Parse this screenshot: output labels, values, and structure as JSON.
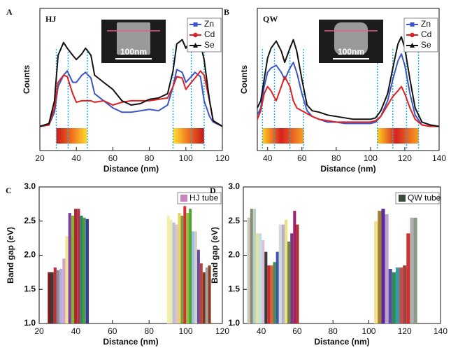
{
  "chart_data": [
    {
      "type": "line",
      "label": "A",
      "tag": "HJ",
      "inset_scale": "100nm",
      "xlabel": "Distance (nm)",
      "ylabel": "Counts",
      "xlim": [
        20,
        120
      ],
      "ylim": [
        0,
        100
      ],
      "xticks": [
        20,
        40,
        60,
        80,
        100,
        120
      ],
      "legend": "upper right",
      "vlines": [
        29,
        35.5,
        46,
        93,
        103,
        110
      ],
      "bands": [
        [
          29,
          46
        ],
        [
          93,
          110
        ]
      ],
      "x": [
        20,
        25,
        28,
        30,
        33,
        35,
        38,
        40,
        43,
        45,
        48,
        50,
        55,
        60,
        65,
        70,
        75,
        80,
        85,
        90,
        93,
        95,
        98,
        100,
        103,
        105,
        108,
        110,
        113,
        115,
        120
      ],
      "series": [
        {
          "name": "Zn",
          "color": "#3a56c8",
          "marker": "square",
          "values": [
            17,
            18,
            27,
            45,
            53,
            56,
            48,
            48,
            53,
            55,
            51,
            40,
            35,
            30,
            27,
            27,
            28,
            29,
            28,
            32,
            45,
            57,
            55,
            48,
            52,
            55,
            52,
            35,
            24,
            20,
            17
          ]
        },
        {
          "name": "Cd",
          "color": "#e02020",
          "marker": "circle",
          "values": [
            17,
            18,
            30,
            48,
            53,
            52,
            40,
            34,
            35,
            35,
            35,
            34,
            35,
            32,
            34,
            35,
            35,
            35,
            36,
            37,
            45,
            52,
            51,
            43,
            48,
            51,
            56,
            53,
            35,
            21,
            17
          ]
        },
        {
          "name": "Se",
          "color": "#111111",
          "marker": "triangle",
          "values": [
            17,
            19,
            35,
            67,
            76,
            72,
            67,
            64,
            68,
            72,
            67,
            53,
            48,
            43,
            35,
            32,
            33,
            36,
            37,
            40,
            56,
            75,
            78,
            72,
            78,
            80,
            75,
            64,
            35,
            21,
            17
          ]
        }
      ]
    },
    {
      "type": "line",
      "label": "B",
      "tag": "QW",
      "inset_scale": "100nm",
      "xlabel": "Distance (nm)",
      "ylabel": "Counts",
      "xlim": [
        34,
        140
      ],
      "ylim": [
        0,
        100
      ],
      "xticks": [
        40,
        60,
        80,
        100,
        120,
        140
      ],
      "legend": "upper right",
      "vlines": [
        37,
        44,
        53,
        61,
        104,
        113,
        121,
        128
      ],
      "bands": [
        [
          37,
          61
        ],
        [
          104,
          128
        ]
      ],
      "x": [
        34,
        36,
        38,
        40,
        42,
        45,
        48,
        50,
        53,
        55,
        57,
        60,
        63,
        66,
        70,
        75,
        80,
        85,
        90,
        95,
        100,
        103,
        106,
        110,
        113,
        116,
        118,
        120,
        123,
        126,
        130,
        135,
        140
      ],
      "series": [
        {
          "name": "Zn",
          "color": "#3a56c8",
          "marker": "square",
          "values": [
            25,
            30,
            45,
            55,
            58,
            60,
            55,
            50,
            58,
            62,
            55,
            40,
            28,
            24,
            22,
            20,
            20,
            19,
            19,
            19,
            19,
            20,
            24,
            35,
            50,
            63,
            68,
            60,
            40,
            25,
            18,
            17,
            17
          ]
        },
        {
          "name": "Cd",
          "color": "#e02020",
          "marker": "circle",
          "values": [
            22,
            28,
            40,
            45,
            42,
            35,
            45,
            52,
            45,
            35,
            30,
            28,
            26,
            24,
            22,
            21,
            20,
            20,
            20,
            20,
            20,
            21,
            24,
            32,
            38,
            42,
            45,
            40,
            30,
            22,
            18,
            17,
            17
          ]
        },
        {
          "name": "Se",
          "color": "#111111",
          "marker": "triangle",
          "values": [
            30,
            35,
            50,
            65,
            72,
            77,
            70,
            62,
            72,
            78,
            70,
            50,
            32,
            28,
            27,
            25,
            24,
            23,
            22,
            22,
            22,
            23,
            28,
            40,
            58,
            75,
            80,
            72,
            50,
            30,
            20,
            18,
            17
          ]
        }
      ]
    },
    {
      "type": "bar",
      "label": "C",
      "xlabel": "Distance (nm)",
      "ylabel": "Band gap (eV)",
      "xlim": [
        20,
        120
      ],
      "ylim": [
        1,
        3
      ],
      "xticks": [
        20,
        40,
        60,
        80,
        100,
        120
      ],
      "legend": "upper right",
      "yticks": [
        {
          "value": 1,
          "label": "1.0"
        },
        1.5,
        {
          "value": 2,
          "label": "2.0"
        },
        2.5,
        {
          "value": 3,
          "label": "3.0"
        }
      ],
      "series": [
        {
          "name": "HJ tube",
          "color": "#c886c0",
          "x": [
            25.5,
            27.1,
            28.7,
            30.3,
            31.9,
            33.5,
            35.1,
            36.7,
            38.3,
            39.9,
            41.5,
            43.1,
            44.7,
            46.3,
            90.5,
            92,
            93.5,
            95,
            96.5,
            98,
            99.5,
            101,
            102.5,
            104,
            105.5,
            107,
            108.5,
            110,
            111.5,
            113
          ],
          "values": [
            1.75,
            1.75,
            1.82,
            1.78,
            1.8,
            1.95,
            2.28,
            2.62,
            2.58,
            2.68,
            2.68,
            2.58,
            2.55,
            2.53,
            2.58,
            2.52,
            2.48,
            2.45,
            2.62,
            2.58,
            2.72,
            2.62,
            2.68,
            2.35,
            2.35,
            2.08,
            1.88,
            1.75,
            1.82,
            1.85
          ],
          "colors": [
            "#7a1a1a",
            "#3a3a3a",
            "#c03030",
            "#8a8a9a",
            "#b0b0e0",
            "#d8a0d0",
            "#f0e68c",
            "#7b3fa0",
            "#8ab030",
            "#a52a2a",
            "#b03050",
            "#2e8b57",
            "#4a9a4a",
            "#3a3aa0",
            "#f5f0a0",
            "#e8e8c0",
            "#c0c0c0",
            "#d8c0e0",
            "#f0d060",
            "#7aa040",
            "#d03030",
            "#90c040",
            "#50a030",
            "#a0c0e0",
            "#d0d0d0",
            "#6a4a9a",
            "#c04040",
            "#7a3a1a",
            "#a0a0a0",
            "#8a4020"
          ]
        }
      ]
    },
    {
      "type": "bar",
      "label": "D",
      "xlabel": "Distance (nm)",
      "ylabel": "Band gap (eV)",
      "xlim": [
        30,
        140
      ],
      "ylim": [
        1,
        3
      ],
      "xticks": [
        40,
        60,
        80,
        100,
        120,
        140
      ],
      "legend": "upper right",
      "yticks": [
        {
          "value": 1,
          "label": "1.0"
        },
        1.5,
        {
          "value": 2,
          "label": "2.0"
        },
        2.5,
        {
          "value": 3,
          "label": "3.0"
        }
      ],
      "series": [
        {
          "name": "QW tube",
          "color": "#3a4a3a",
          "x": [
            33,
            34.6,
            36.2,
            37.8,
            39.4,
            41,
            42.6,
            44.2,
            45.8,
            47.4,
            49,
            50.6,
            52.2,
            53.8,
            55.4,
            57,
            58.6,
            60.2,
            104,
            106,
            108,
            110,
            112,
            114,
            116,
            118,
            120,
            122,
            124,
            126
          ],
          "values": [
            2.55,
            2.68,
            2.68,
            2.32,
            2.32,
            2.22,
            2.05,
            1.85,
            1.85,
            1.9,
            2.05,
            2.45,
            2.45,
            2.52,
            2.2,
            2.32,
            2.65,
            2.45,
            2.5,
            2.65,
            2.68,
            2.6,
            1.8,
            1.75,
            1.82,
            1.82,
            1.85,
            2.32,
            2.55,
            2.55
          ],
          "colors": [
            "#c8c8b8",
            "#8a8a7a",
            "#b8d0c0",
            "#e0e0a0",
            "#c0e0e0",
            "#d8c0d8",
            "#3a3a3a",
            "#c03030",
            "#e06040",
            "#4a8a4a",
            "#3a5ab0",
            "#d8d8d8",
            "#b0b0d0",
            "#f0e080",
            "#6a8a4a",
            "#7a3a7a",
            "#a02070",
            "#b03030",
            "#f0e090",
            "#a08030",
            "#5a2a9a",
            "#c0a0d0",
            "#5a4aa0",
            "#2e8b57",
            "#30a0a0",
            "#c05050",
            "#a04040",
            "#d03030",
            "#b0b0b0",
            "#8a9a8a"
          ]
        }
      ]
    }
  ]
}
